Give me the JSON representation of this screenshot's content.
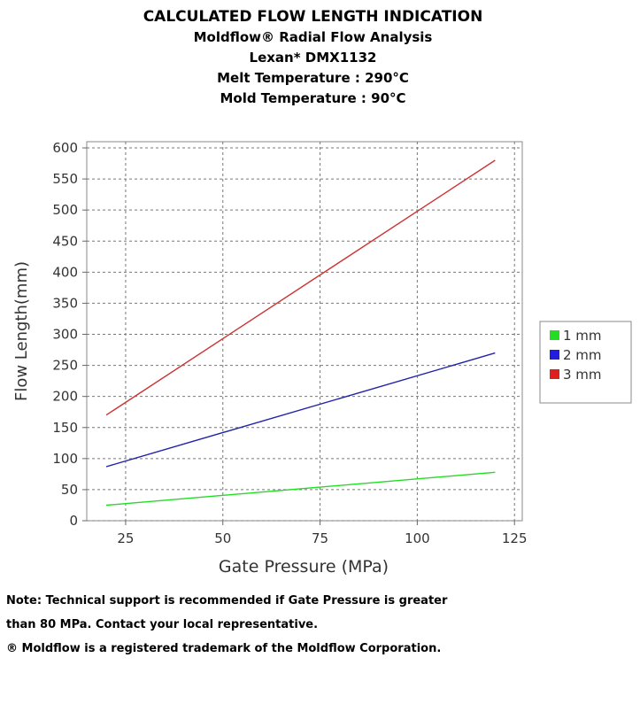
{
  "chart_data": {
    "type": "line",
    "title": "CALCULATED FLOW LENGTH INDICATION",
    "subtitles": [
      "Moldflow® Radial Flow Analysis",
      "Lexan* DMX1132",
      "Melt Temperature : 290°C",
      "Mold Temperature : 90°C"
    ],
    "xlabel": "Gate Pressure (MPa)",
    "ylabel": "Flow Length(mm)",
    "xlim": [
      15,
      127
    ],
    "ylim": [
      0,
      610
    ],
    "xticks": [
      25,
      50,
      75,
      100,
      125
    ],
    "yticks": [
      0,
      50,
      100,
      150,
      200,
      250,
      300,
      350,
      400,
      450,
      500,
      550,
      600
    ],
    "grid": true,
    "legend_position": "right",
    "series": [
      {
        "name": "1 mm",
        "color": "#22dd22",
        "x": [
          20,
          120
        ],
        "y": [
          25,
          78
        ]
      },
      {
        "name": "2 mm",
        "color": "#2222aa",
        "x": [
          20,
          120
        ],
        "y": [
          87,
          270
        ]
      },
      {
        "name": "3 mm",
        "color": "#cc3333",
        "x": [
          20,
          120
        ],
        "y": [
          170,
          580
        ]
      }
    ]
  },
  "legend_swatch_colors": [
    "#22dd22",
    "#1f1fdd",
    "#dd1f1f"
  ],
  "notes": {
    "line1": "Note: Technical support is recommended if Gate Pressure is greater than 80 MPa. Contact your local representative.",
    "line2": "® Moldflow is a registered trademark of the Moldflow Corporation."
  }
}
